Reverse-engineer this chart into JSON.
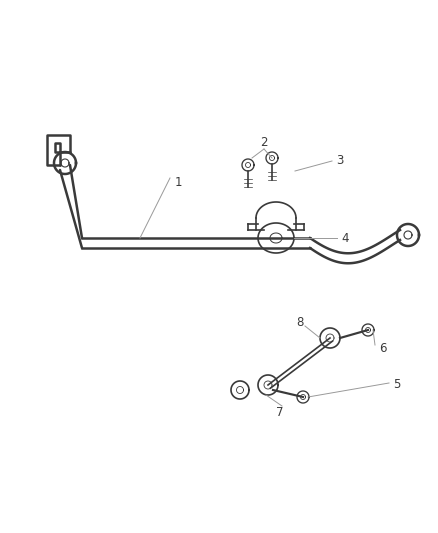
{
  "bg_color": "#ffffff",
  "line_color": "#3a3a3a",
  "label_color": "#3a3a3a",
  "leader_color": "#999999",
  "fig_width": 4.38,
  "fig_height": 5.33,
  "dpi": 100,
  "label_fs": 8.5
}
